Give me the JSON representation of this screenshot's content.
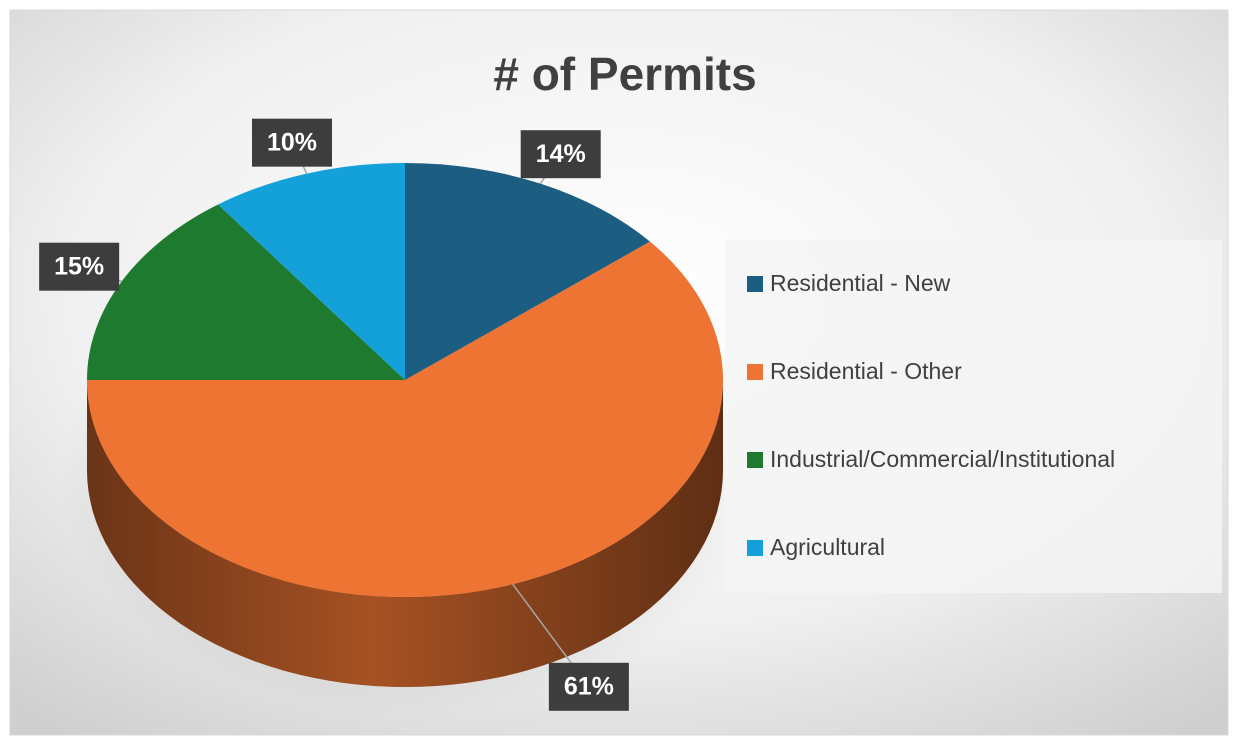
{
  "chart_data": {
    "type": "pie",
    "title": "# of Permits",
    "categories": [
      "Residential - New",
      "Residential - Other",
      "Industrial/Commercial/Institutional",
      "Agricultural"
    ],
    "values": [
      14,
      61,
      15,
      10
    ],
    "value_labels": [
      "14%",
      "61%",
      "15%",
      "10%"
    ],
    "colors": [
      "#1c5d82",
      "#ed7432",
      "#1d7a2e",
      "#14a1d9"
    ],
    "legend": "right"
  }
}
